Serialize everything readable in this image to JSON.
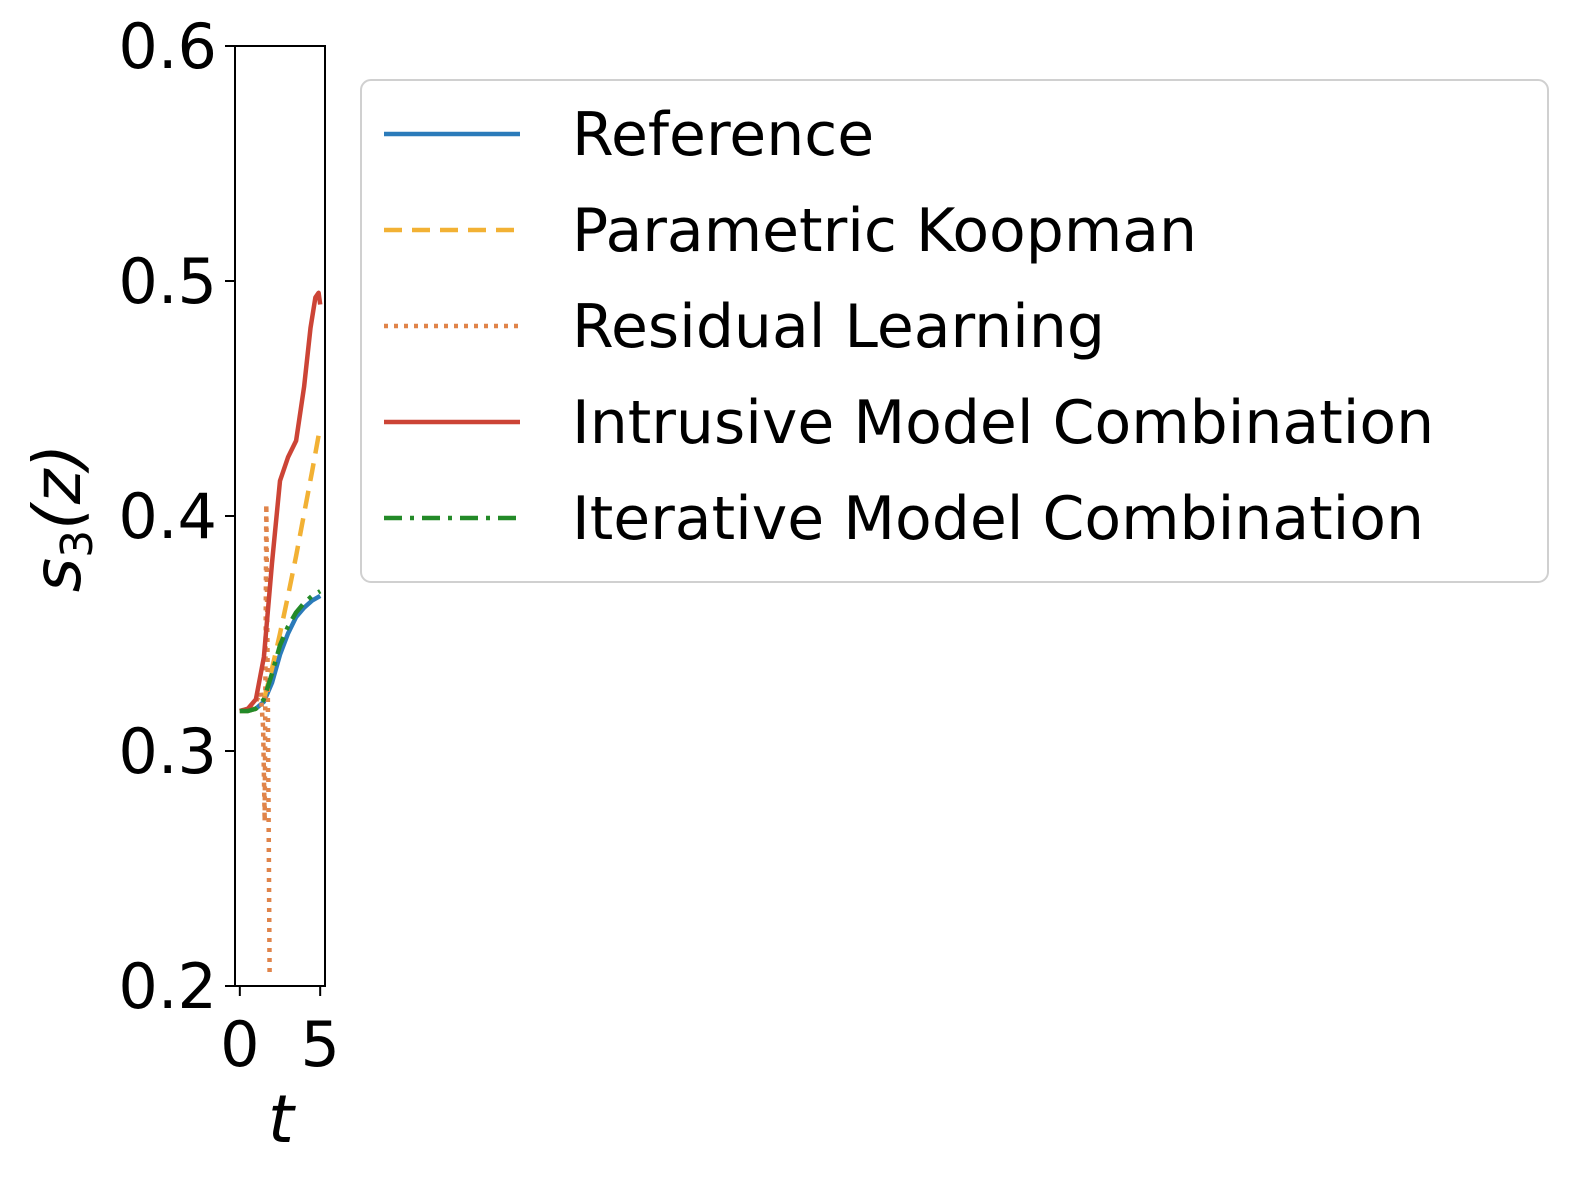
{
  "chart_data": {
    "type": "line",
    "title": "",
    "xlabel": "t",
    "ylabel": "s",
    "ylabel_subscript": "3",
    "ylabel_arg": "(z)",
    "xlim": [
      -0.3,
      5.3
    ],
    "ylim": [
      0.2,
      0.6
    ],
    "xticks": [
      0,
      5
    ],
    "xtick_labels": [
      "0",
      "5"
    ],
    "yticks": [
      0.2,
      0.3,
      0.4,
      0.5,
      0.6
    ],
    "ytick_labels": [
      "0.2",
      "0.3",
      "0.4",
      "0.5",
      "0.6"
    ],
    "grid": false,
    "legend_position": "right",
    "series": [
      {
        "name": "Reference",
        "color": "#2b7bba",
        "style": "solid",
        "x": [
          0,
          0.5,
          1.0,
          1.5,
          2.0,
          2.5,
          3.0,
          3.5,
          4.0,
          4.5,
          5.0
        ],
        "y": [
          0.317,
          0.317,
          0.318,
          0.321,
          0.329,
          0.341,
          0.35,
          0.357,
          0.361,
          0.364,
          0.366
        ]
      },
      {
        "name": "Parametric Koopman",
        "color": "#f2b134",
        "style": "dashed",
        "x": [
          0,
          0.5,
          1.0,
          1.5,
          2.0,
          2.5,
          3.0,
          3.5,
          4.0,
          4.5,
          5.0
        ],
        "y": [
          0.317,
          0.317,
          0.318,
          0.322,
          0.335,
          0.35,
          0.366,
          0.383,
          0.401,
          0.419,
          0.438
        ]
      },
      {
        "name": "Residual Learning",
        "color": "#e0844a",
        "style": "dotted",
        "x": [
          0,
          0.5,
          1.0,
          1.3,
          1.45,
          1.55,
          1.65,
          1.75,
          1.85
        ],
        "y": [
          0.317,
          0.318,
          0.321,
          0.325,
          0.31,
          0.27,
          0.405,
          0.32,
          0.205
        ]
      },
      {
        "name": "Intrusive Model Combination",
        "color": "#cc4436",
        "style": "solid",
        "x": [
          0,
          0.5,
          1.0,
          1.5,
          2.0,
          2.5,
          3.0,
          3.5,
          4.0,
          4.4,
          4.7,
          4.9,
          5.0
        ],
        "y": [
          0.317,
          0.318,
          0.322,
          0.34,
          0.38,
          0.415,
          0.425,
          0.432,
          0.455,
          0.48,
          0.493,
          0.495,
          0.49
        ]
      },
      {
        "name": "Iterative Model Combination",
        "color": "#238a28",
        "style": "dashdot",
        "x": [
          0,
          0.5,
          1.0,
          1.5,
          2.0,
          2.5,
          3.0,
          3.5,
          4.0,
          4.5,
          5.0
        ],
        "y": [
          0.317,
          0.317,
          0.318,
          0.322,
          0.333,
          0.345,
          0.353,
          0.359,
          0.363,
          0.366,
          0.368
        ]
      }
    ]
  }
}
